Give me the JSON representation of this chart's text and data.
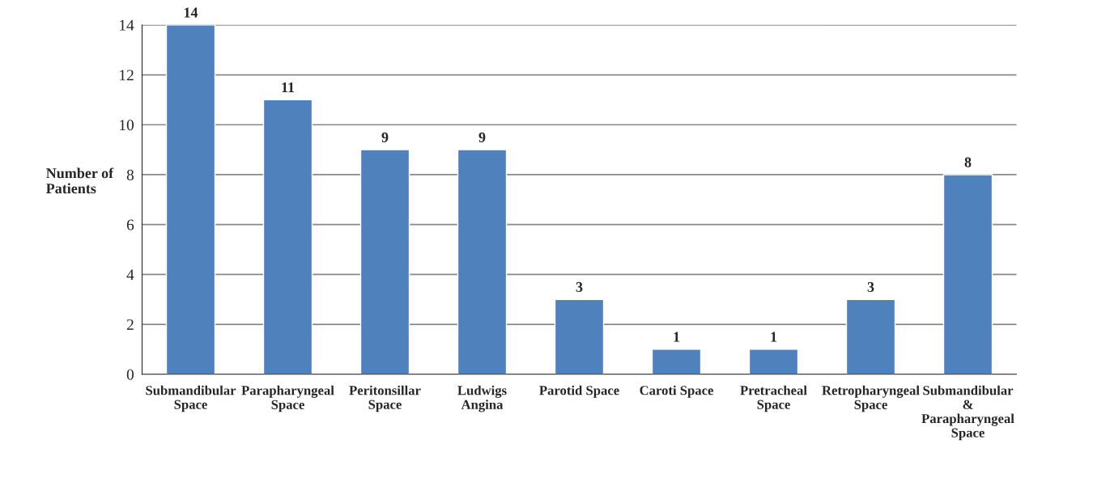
{
  "chart_data": {
    "type": "bar",
    "ylabel": "Number of Patients",
    "categories": [
      "Submandibular Space",
      "Parapharyngeal Space",
      "Peritonsillar Space",
      "Ludwigs Angina",
      "Parotid Space",
      "Caroti Space",
      "Pretracheal Space",
      "Retropharyngeal Space",
      "Submandibular & Parapharyngeal Space"
    ],
    "values": [
      14,
      11,
      9,
      9,
      3,
      1,
      1,
      3,
      8
    ],
    "color": "#4f81bd",
    "ylim": [
      0,
      14
    ],
    "yticks": [
      0,
      2,
      4,
      6,
      8,
      10,
      12,
      14
    ],
    "grid": "y",
    "data_labels": true
  }
}
